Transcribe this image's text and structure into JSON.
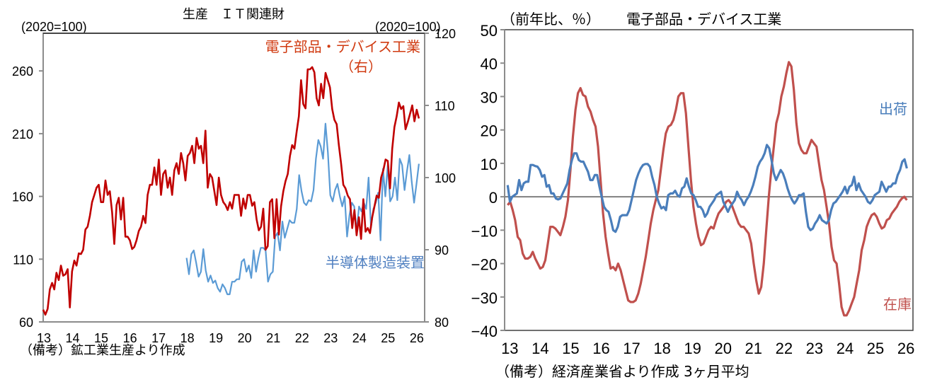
{
  "chart_data": [
    {
      "type": "line",
      "title": "生産　ＩＴ関連財",
      "left_unit": "(2020=100)",
      "right_unit": "(2020=100)",
      "note": "（備考）鉱工業生産より作成",
      "xlabel": "",
      "x_ticks": [
        "13",
        "14",
        "15",
        "16",
        "17",
        "18",
        "19",
        "20",
        "21",
        "22",
        "23",
        "24",
        "25",
        "26"
      ],
      "x_range": [
        2013,
        2026.3
      ],
      "left_axis": {
        "ylim": [
          60,
          290
        ],
        "ticks": [
          "60",
          "110",
          "160",
          "210",
          "260"
        ],
        "tick_values": [
          60,
          110,
          160,
          210,
          260
        ]
      },
      "right_axis": {
        "ylim": [
          80,
          120
        ],
        "ticks": [
          "80",
          "90",
          "100",
          "110",
          "120"
        ],
        "tick_values": [
          80,
          90,
          100,
          110,
          120
        ]
      },
      "grid": false,
      "series": [
        {
          "name": "電子部品・デバイス工業（右）",
          "label_line1": "電子部品・デバイス工業",
          "label_line2": "（右）",
          "axis": "right",
          "color": "#c00000",
          "label_color": "#d03a10",
          "x_start": 2013.0,
          "x_end": 2026.1,
          "values": [
            81.7,
            81.0,
            81.8,
            84.5,
            85.4,
            84.5,
            86.8,
            85.8,
            87.8,
            86.4,
            86.6,
            87.3,
            82.0,
            87.0,
            88.5,
            87.8,
            89.5,
            89.4,
            90.0,
            92.8,
            93.2,
            94.7,
            96.6,
            97.6,
            98.6,
            99.0,
            96.6,
            96.6,
            99.6,
            97.6,
            98.1,
            95.2,
            90.8,
            96.2,
            97.2,
            94.2,
            97.2,
            91.8,
            91.8,
            91.3,
            90.1,
            90.4,
            91.3,
            92.6,
            93.2,
            94.7,
            93.7,
            97.6,
            99.0,
            99.0,
            101.4,
            99.0,
            102.5,
            97.6,
            100.5,
            101.0,
            98.6,
            100.0,
            97.6,
            101.0,
            102.0,
            100.5,
            103.4,
            102.0,
            99.6,
            103.0,
            103.4,
            104.4,
            102.0,
            105.5,
            104.0,
            104.4,
            102.0,
            106.5,
            98.6,
            100.5,
            100.0,
            98.1,
            96.2,
            100.0,
            97.6,
            96.6,
            96.2,
            95.5,
            96.6,
            95.7,
            97.6,
            97.6,
            97.6,
            94.7,
            97.1,
            95.7,
            97.6,
            97.6,
            96.1,
            96.6,
            94.2,
            92.7,
            93.2,
            95.7,
            90.0,
            90.5,
            96.6,
            97.0,
            91.6,
            97.0,
            92.1,
            96.0,
            98.1,
            99.5,
            100.5,
            103.0,
            104.5,
            104.0,
            106.3,
            108.5,
            113.5,
            110.2,
            109.6,
            115.0,
            115.0,
            115.3,
            114.6,
            111.0,
            110.0,
            113.0,
            111.0,
            114.5,
            113.5,
            112.5,
            109.5,
            108.0,
            107.4,
            104.5,
            102.0,
            99.0,
            98.5,
            97.5,
            97.0,
            93.0,
            95.5,
            92.0,
            94.5,
            91.5,
            97.0,
            92.5,
            93.0,
            92.3,
            94.5,
            96.0,
            97.5,
            97.2,
            100.0,
            101.0,
            102.5,
            102.3,
            98.5,
            104.0,
            107.0,
            108.5,
            110.4,
            109.5,
            109.9,
            106.7,
            107.7,
            108.8,
            110.0,
            107.8,
            109.4,
            108.2
          ]
        },
        {
          "name": "半導体製造装置",
          "label": "半導体製造装置",
          "axis": "left",
          "color": "#5b9bd5",
          "label_color": "#4f7fc0",
          "x_start": 2018.0,
          "x_end": 2026.1,
          "values": [
            111,
            98,
            114,
            117,
            107,
            96,
            100,
            118,
            101,
            92,
            97,
            91,
            93,
            87,
            84,
            90,
            87,
            82,
            82,
            92,
            92,
            94,
            94,
            108,
            110,
            100,
            105,
            95,
            117,
            100,
            111,
            119,
            119,
            117,
            92,
            98,
            100,
            128,
            131,
            117,
            140,
            127,
            134,
            141,
            139,
            139,
            150,
            177,
            164,
            155,
            153,
            157,
            156,
            165,
            190,
            205,
            200,
            190,
            218,
            195,
            161,
            156,
            165,
            170,
            160,
            152,
            160,
            128,
            145,
            155,
            152,
            132,
            152,
            148,
            155,
            150,
            175,
            135,
            150,
            155,
            163,
            125,
            182,
            160,
            185,
            156,
            160,
            175,
            157,
            190,
            185,
            165,
            180,
            193,
            172,
            155,
            170,
            186
          ]
        }
      ]
    },
    {
      "type": "line",
      "title": "電子部品・デバイス工業",
      "unit": "（前年比、％）",
      "note": "（備考）経済産業省より作成 3ヶ月平均",
      "x_ticks": [
        "13",
        "14",
        "15",
        "16",
        "17",
        "18",
        "19",
        "20",
        "21",
        "22",
        "23",
        "24",
        "25",
        "26"
      ],
      "x_range": [
        2012.9,
        2026.3
      ],
      "ylim": [
        -40,
        50
      ],
      "y_ticks": [
        "-40",
        "-30",
        "-20",
        "-10",
        "0",
        "10",
        "20",
        "30",
        "40",
        "50"
      ],
      "y_tick_values": [
        -40,
        -30,
        -20,
        -10,
        0,
        10,
        20,
        30,
        40,
        50
      ],
      "grid": false,
      "zero_line": true,
      "series": [
        {
          "name": "出荷",
          "color": "#4a7ebb",
          "x_start": 2013.0,
          "x_end": 2026.1,
          "values": [
            3.5,
            -1.5,
            0,
            0.5,
            1,
            5,
            2,
            4,
            4.5,
            4.5,
            9.5,
            9.5,
            9.2,
            9,
            8,
            6,
            6.5,
            3,
            3.5,
            1,
            1,
            -0.5,
            -0.8,
            -0.5,
            1,
            2.5,
            4,
            8,
            11,
            13,
            13,
            11,
            10.5,
            10.5,
            9,
            7.5,
            5,
            5,
            6.5,
            6.5,
            3,
            0,
            -3,
            -4,
            -4.5,
            -7,
            -10,
            -10.5,
            -9,
            -6,
            -5.5,
            -5.5,
            -5.5,
            -4,
            -1,
            2,
            5,
            7,
            8.5,
            9.5,
            9.8,
            9.8,
            9,
            6,
            3.5,
            0,
            -2,
            -3.5,
            -3,
            -4,
            0.5,
            1,
            1,
            1.8,
            0.5,
            0,
            2.5,
            3,
            5.5,
            3,
            1,
            0.5,
            -1,
            -3,
            -3,
            -4,
            -6,
            -5,
            -3,
            -2,
            -1,
            0.5,
            1,
            1.5,
            -1.5,
            -3,
            -4.5,
            -3,
            -2,
            -1,
            1.5,
            0,
            -1,
            -2.5,
            -1,
            0,
            1.5,
            3.5,
            6,
            9,
            10.5,
            11.5,
            13,
            15.5,
            14.5,
            11,
            7,
            5,
            6.5,
            8,
            7,
            5,
            2.5,
            0.5,
            -1,
            -2,
            -1,
            0.5,
            0.5,
            1,
            -4.5,
            -9,
            -10,
            -9.5,
            -8,
            -7,
            -5.5,
            -7,
            -7.5,
            -8,
            -7,
            -4,
            -2,
            -1.5,
            -0.5,
            0.5,
            1.5,
            3,
            1,
            3,
            3.5,
            6,
            2,
            4,
            2,
            1,
            0,
            -1.5,
            -2,
            -1,
            0.5,
            1,
            1.5,
            4.5,
            3,
            1.5,
            3,
            3,
            4,
            4,
            6.5,
            8,
            10.5,
            11.2,
            8.5
          ]
        },
        {
          "name": "在庫",
          "color": "#c0504d",
          "x_start": 2013.0,
          "x_end": 2026.1,
          "values": [
            -2.5,
            -1.5,
            -4,
            -7,
            -12,
            -13,
            -17,
            -18.5,
            -18.5,
            -18,
            -16.5,
            -18.5,
            -20,
            -21.5,
            -21,
            -19,
            -14,
            -9,
            -9,
            -9.5,
            -10.5,
            -11.5,
            -9,
            -6,
            -1,
            8,
            18,
            26,
            31,
            32.5,
            30.5,
            30,
            27,
            25.5,
            23,
            21,
            15,
            5,
            -5,
            -12,
            -17,
            -21.5,
            -21,
            -22,
            -20,
            -22,
            -25,
            -28,
            -31,
            -31.5,
            -31.5,
            -31,
            -29,
            -26,
            -22,
            -18,
            -13,
            -8,
            -4,
            -1,
            2,
            8,
            14,
            19,
            21,
            21.5,
            23,
            26,
            30,
            31,
            31,
            25,
            15,
            5,
            -3,
            -8,
            -12,
            -14.5,
            -14,
            -12,
            -10,
            -9,
            -9.5,
            -7,
            -5,
            -4,
            -3,
            -1.5,
            -1,
            -2,
            -4,
            -6,
            -8,
            -9,
            -9,
            -10,
            -11,
            -14,
            -20,
            -25,
            -29,
            -27,
            -20,
            -10,
            0,
            8,
            15,
            22,
            25,
            30,
            33,
            37,
            40.3,
            39,
            32,
            22,
            16,
            14,
            13,
            13,
            15,
            17,
            16,
            15,
            10,
            5,
            2,
            -3,
            -8,
            -15,
            -19,
            -20,
            -26,
            -33,
            -35.5,
            -35.5,
            -34,
            -32,
            -30,
            -26,
            -22,
            -16,
            -13,
            -9,
            -7,
            -5.5,
            -5,
            -6,
            -8,
            -9.5,
            -9,
            -7,
            -6.5,
            -5,
            -4,
            -3,
            -1.5,
            -0.5,
            0,
            -1
          ]
        }
      ],
      "labels": {
        "shipments": "出荷",
        "inventory": "在庫"
      }
    }
  ]
}
